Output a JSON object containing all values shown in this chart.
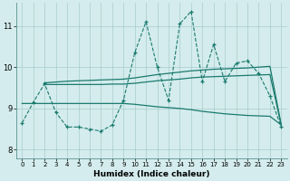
{
  "xlabel": "Humidex (Indice chaleur)",
  "bg_color": "#d4eced",
  "grid_color": "#a8cccc",
  "line_color": "#1a7a6e",
  "x_ticks": [
    0,
    1,
    2,
    3,
    4,
    5,
    6,
    7,
    8,
    9,
    10,
    11,
    12,
    13,
    14,
    15,
    16,
    17,
    18,
    19,
    20,
    21,
    22,
    23
  ],
  "y_ticks": [
    8,
    9,
    10,
    11
  ],
  "ylim": [
    7.8,
    11.55
  ],
  "xlim": [
    -0.5,
    23.5
  ],
  "zigzag_x": [
    0,
    1,
    2,
    3,
    4,
    5,
    6,
    7,
    8,
    9,
    10,
    11,
    12,
    13,
    14,
    15,
    16,
    17,
    18,
    19,
    20,
    21,
    22,
    23
  ],
  "zigzag_y": [
    8.65,
    9.15,
    9.6,
    8.9,
    8.55,
    8.55,
    8.5,
    8.45,
    8.6,
    9.2,
    10.35,
    11.1,
    10.0,
    9.2,
    11.05,
    11.35,
    9.65,
    10.55,
    9.65,
    10.1,
    10.15,
    9.85,
    9.3,
    8.55
  ],
  "upper_x": [
    2,
    3,
    4,
    5,
    6,
    7,
    8,
    9,
    10,
    11,
    12,
    13,
    14,
    15,
    16,
    17,
    18,
    19,
    20,
    21,
    22,
    23
  ],
  "upper_y": [
    9.62,
    9.64,
    9.66,
    9.67,
    9.68,
    9.69,
    9.7,
    9.71,
    9.74,
    9.78,
    9.82,
    9.85,
    9.88,
    9.91,
    9.93,
    9.95,
    9.96,
    9.97,
    9.98,
    10.0,
    10.02,
    8.6
  ],
  "mid_x": [
    2,
    3,
    4,
    5,
    6,
    7,
    8,
    9,
    10,
    11,
    12,
    13,
    14,
    15,
    16,
    17,
    18,
    19,
    20,
    21,
    22,
    23
  ],
  "mid_y": [
    9.58,
    9.58,
    9.58,
    9.58,
    9.58,
    9.58,
    9.59,
    9.59,
    9.61,
    9.64,
    9.67,
    9.69,
    9.71,
    9.74,
    9.76,
    9.77,
    9.78,
    9.79,
    9.8,
    9.81,
    9.82,
    8.6
  ],
  "lower_x": [
    0,
    1,
    2,
    3,
    4,
    5,
    6,
    7,
    8,
    9,
    10,
    11,
    12,
    13,
    14,
    15,
    16,
    17,
    18,
    19,
    20,
    21,
    22,
    23
  ],
  "lower_y": [
    9.12,
    9.12,
    9.12,
    9.12,
    9.12,
    9.12,
    9.12,
    9.12,
    9.12,
    9.12,
    9.1,
    9.07,
    9.04,
    9.02,
    9.0,
    8.97,
    8.93,
    8.9,
    8.87,
    8.85,
    8.83,
    8.82,
    8.81,
    8.6
  ]
}
